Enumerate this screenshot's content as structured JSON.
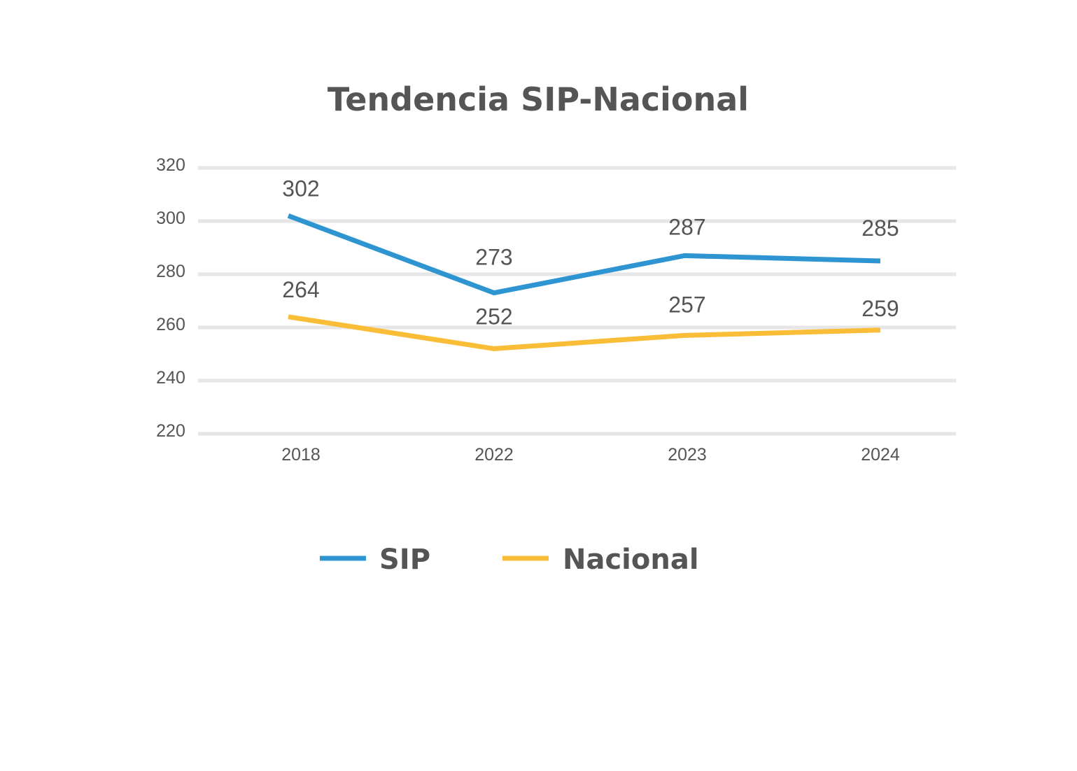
{
  "chart_data": {
    "type": "line",
    "title": "Tendencia SIP-Nacional",
    "xlabel": "",
    "ylabel": "",
    "categories": [
      "2018",
      "2022",
      "2023",
      "2024"
    ],
    "ylim": [
      220,
      320
    ],
    "yticks": [
      220,
      240,
      260,
      280,
      300,
      320
    ],
    "grid": true,
    "legend_position": "bottom",
    "series": [
      {
        "name": "SIP",
        "color": "#2e94d2",
        "values": [
          302,
          273,
          287,
          285
        ],
        "labels": [
          "302",
          "273",
          "287",
          "285"
        ]
      },
      {
        "name": "Nacional",
        "color": "#f9bd38",
        "values": [
          264,
          252,
          257,
          259
        ],
        "labels": [
          "264",
          "252",
          "257",
          "259"
        ]
      }
    ]
  }
}
